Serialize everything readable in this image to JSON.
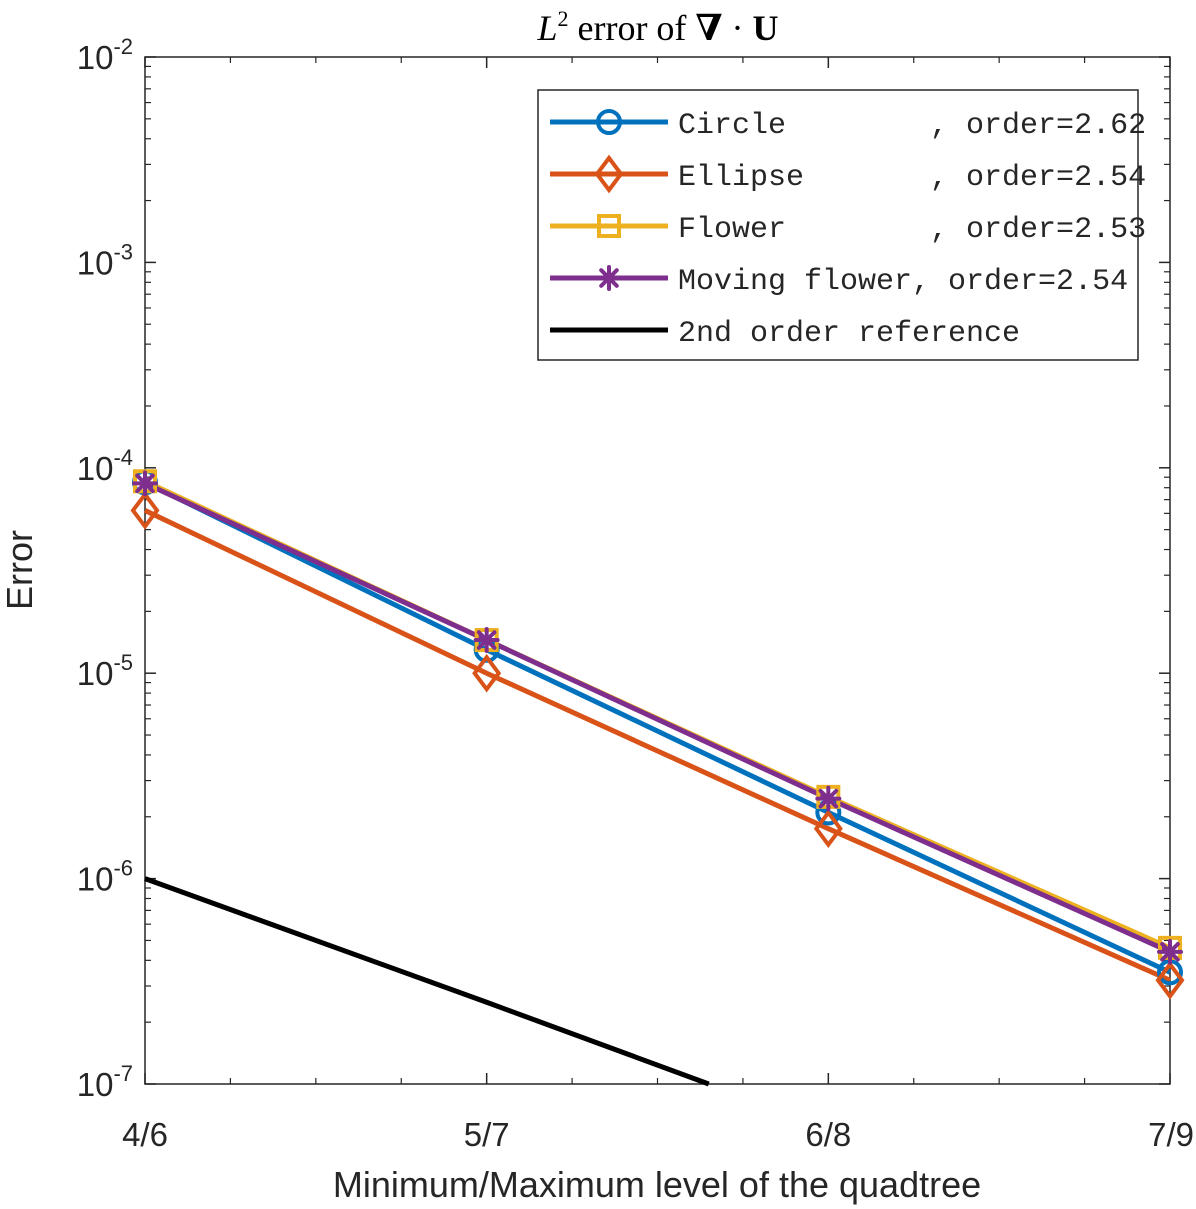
{
  "chart_data": {
    "type": "line",
    "title": {
      "L": "L",
      "exp": "2",
      "rest": " error of ",
      "nabla": "∇",
      "dot": " · ",
      "U": "U"
    },
    "xlabel": "Minimum/Maximum level of the quadtree",
    "ylabel": "Error",
    "x_scale": "category",
    "y_scale": "log",
    "categories": [
      "4/6",
      "5/7",
      "6/8",
      "7/9"
    ],
    "ylim": [
      1e-07,
      0.01
    ],
    "y_ticks": [
      {
        "base": "10",
        "exp": "-7"
      },
      {
        "base": "10",
        "exp": "-6"
      },
      {
        "base": "10",
        "exp": "-5"
      },
      {
        "base": "10",
        "exp": "-4"
      },
      {
        "base": "10",
        "exp": "-3"
      },
      {
        "base": "10",
        "exp": "-2"
      }
    ],
    "grid": false,
    "legend_position": "top-right",
    "series": [
      {
        "name": "Circle",
        "legend_label": "Circle        , order=2.62",
        "color": "#0072BD",
        "marker": "circle",
        "values": [
          8.5e-05,
          1.3e-05,
          2.1e-06,
          3.5e-07
        ]
      },
      {
        "name": "Ellipse",
        "legend_label": "Ellipse       , order=2.54",
        "color": "#D95319",
        "marker": "diamond",
        "values": [
          6.2e-05,
          1e-05,
          1.75e-06,
          3.2e-07
        ]
      },
      {
        "name": "Flower",
        "legend_label": "Flower        , order=2.53",
        "color": "#EDB120",
        "marker": "square",
        "values": [
          8.6e-05,
          1.45e-05,
          2.5e-06,
          4.6e-07
        ]
      },
      {
        "name": "Moving flower",
        "legend_label": "Moving flower, order=2.54",
        "color": "#7E2F8E",
        "marker": "asterisk",
        "values": [
          8.4e-05,
          1.45e-05,
          2.45e-06,
          4.4e-07
        ]
      },
      {
        "name": "2nd order reference",
        "legend_label": "2nd order reference",
        "color": "#000000",
        "marker": "none",
        "x_values": [
          0,
          1,
          1.65
        ],
        "values": [
          1e-06,
          2.5e-07,
          1e-07
        ]
      }
    ]
  }
}
